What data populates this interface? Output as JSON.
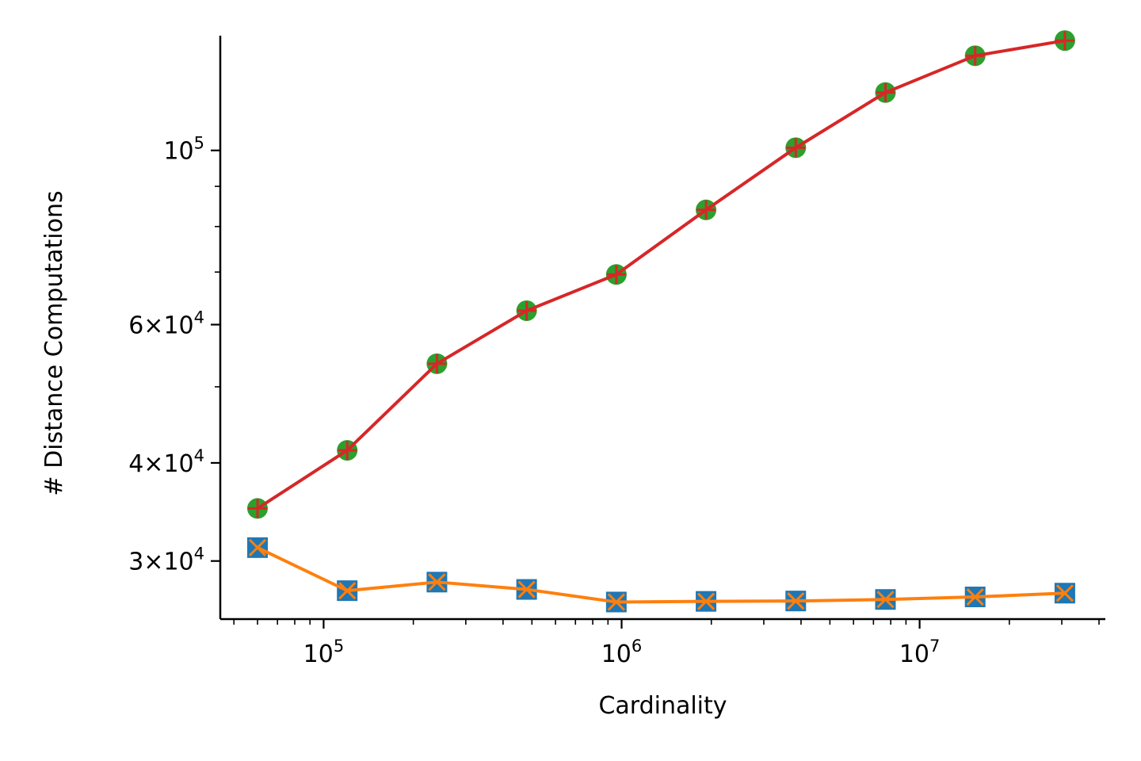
{
  "chart_data": {
    "type": "line",
    "title": "",
    "xlabel": "Cardinality",
    "ylabel": "# Distance Computations",
    "xscale": "log",
    "yscale": "log",
    "xlim": [
      45000,
      42000000
    ],
    "ylim": [
      25300,
      140000
    ],
    "grid": false,
    "legend": "none",
    "x": [
      60000,
      120000,
      240000,
      480000,
      960000,
      1920000,
      3840000,
      7680000,
      15360000,
      30720000
    ],
    "x_ticks": [
      {
        "value": 100000,
        "base": "10",
        "exp": "5"
      },
      {
        "value": 1000000,
        "base": "10",
        "exp": "6"
      },
      {
        "value": 10000000,
        "base": "10",
        "exp": "7"
      }
    ],
    "y_ticks": [
      {
        "value": 30000,
        "base": "3×10",
        "exp": "4"
      },
      {
        "value": 40000,
        "base": "4×10",
        "exp": "4"
      },
      {
        "value": 60000,
        "base": "6×10",
        "exp": "4"
      },
      {
        "value": 100000,
        "base": "10",
        "exp": "5"
      }
    ],
    "series": [
      {
        "marker": "circle",
        "marker_color": "#2ca02c",
        "line_color": null,
        "values": [
          35000,
          41500,
          53500,
          62500,
          69500,
          84000,
          100800,
          118500,
          132000,
          138000
        ]
      },
      {
        "marker": "plus",
        "marker_color": "#d62728",
        "line_color": "#d62728",
        "values": [
          35000,
          41500,
          53500,
          62500,
          69500,
          84000,
          100800,
          118500,
          132000,
          138000
        ]
      },
      {
        "marker": "square",
        "marker_color": "#1f77b4",
        "line_color": null,
        "values": [
          31200,
          27500,
          28200,
          27600,
          26600,
          26650,
          26680,
          26800,
          27000,
          27300
        ]
      },
      {
        "marker": "x",
        "marker_color": "#ff7f0e",
        "line_color": "#ff7f0e",
        "values": [
          31200,
          27500,
          28200,
          27600,
          26600,
          26650,
          26680,
          26800,
          27000,
          27300
        ]
      }
    ]
  }
}
